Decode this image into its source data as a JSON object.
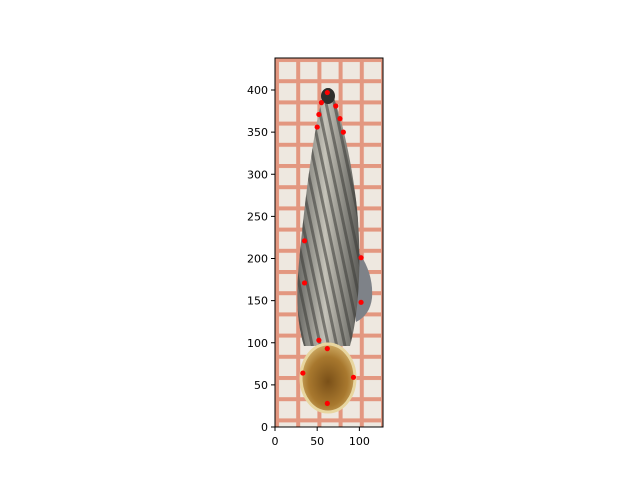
{
  "chart_data": {
    "type": "scatter",
    "title": "",
    "xlabel": "",
    "ylabel": "",
    "xlim": [
      0,
      128
    ],
    "ylim": [
      0,
      438
    ],
    "xticks": [
      0,
      50,
      100
    ],
    "yticks": [
      0,
      50,
      100,
      150,
      200,
      250,
      300,
      350,
      400
    ],
    "background": "photograph of an elongated ribbed snail shell on orange grid paper",
    "marker_color": "#ff0000",
    "points": [
      {
        "x": 62,
        "y": 397
      },
      {
        "x": 55,
        "y": 385
      },
      {
        "x": 72,
        "y": 381
      },
      {
        "x": 52,
        "y": 371
      },
      {
        "x": 77,
        "y": 366
      },
      {
        "x": 50,
        "y": 356
      },
      {
        "x": 81,
        "y": 350
      },
      {
        "x": 35,
        "y": 221
      },
      {
        "x": 102,
        "y": 201
      },
      {
        "x": 35,
        "y": 171
      },
      {
        "x": 102,
        "y": 148
      },
      {
        "x": 52,
        "y": 103
      },
      {
        "x": 62,
        "y": 93
      },
      {
        "x": 33,
        "y": 64
      },
      {
        "x": 93,
        "y": 59
      },
      {
        "x": 62,
        "y": 28
      }
    ]
  }
}
